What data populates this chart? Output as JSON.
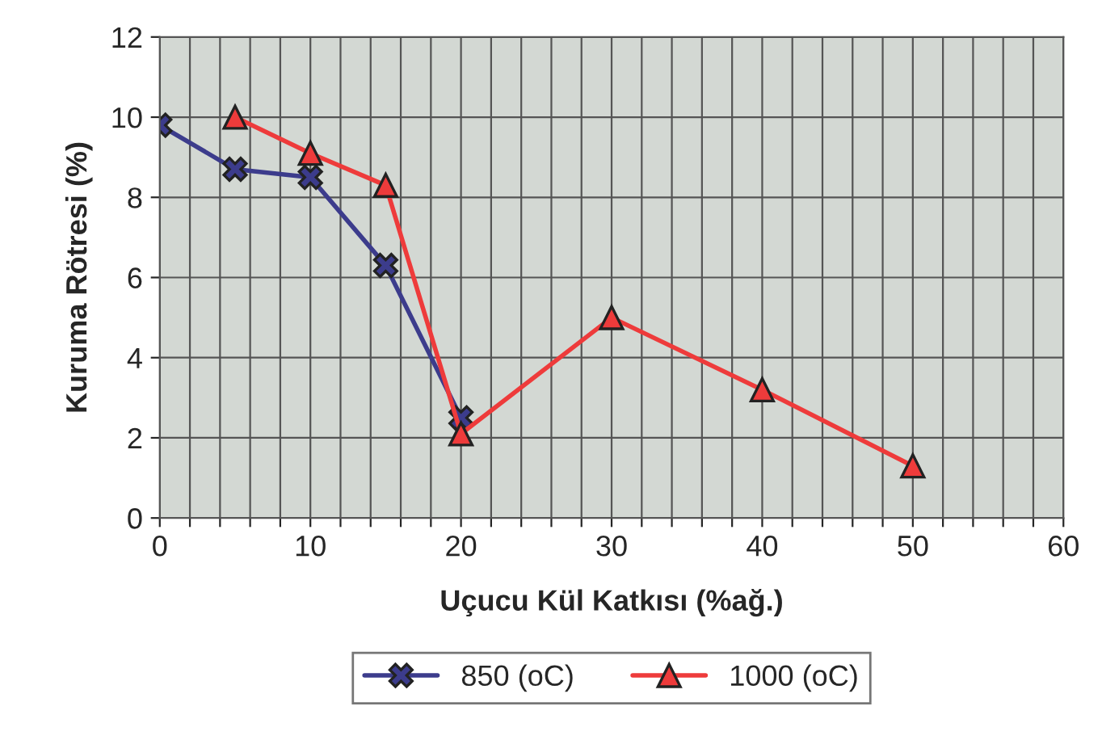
{
  "chart_data": {
    "type": "line",
    "xlabel": "Uçucu Kül Katkısı (%ağ.)",
    "ylabel": "Kuruma Rötresi (%)",
    "xlim": [
      0,
      60
    ],
    "ylim": [
      0,
      12
    ],
    "xticks": [
      0,
      {
        "value": 2,
        "label": null
      },
      {
        "value": 4,
        "label": null
      },
      {
        "value": 6,
        "label": null
      },
      {
        "value": 8,
        "label": null
      },
      10,
      {
        "value": 12,
        "label": null
      },
      {
        "value": 14,
        "label": null
      },
      {
        "value": 16,
        "label": null
      },
      {
        "value": 18,
        "label": null
      },
      20,
      {
        "value": 22,
        "label": null
      },
      {
        "value": 24,
        "label": null
      },
      {
        "value": 26,
        "label": null
      },
      {
        "value": 28,
        "label": null
      },
      30,
      {
        "value": 32,
        "label": null
      },
      {
        "value": 34,
        "label": null
      },
      {
        "value": 36,
        "label": null
      },
      {
        "value": 38,
        "label": null
      },
      40,
      {
        "value": 42,
        "label": null
      },
      {
        "value": 44,
        "label": null
      },
      {
        "value": 46,
        "label": null
      },
      {
        "value": 48,
        "label": null
      },
      50,
      {
        "value": 52,
        "label": null
      },
      {
        "value": 54,
        "label": null
      },
      {
        "value": 56,
        "label": null
      },
      {
        "value": 58,
        "label": null
      },
      60
    ],
    "yticks": [
      0,
      2,
      4,
      6,
      8,
      10,
      12
    ],
    "grid": true,
    "legend": "bottom",
    "line_style": "solid",
    "series": [
      {
        "name": "850 (oC)",
        "color": "#3c3c8c",
        "marker": "cross",
        "x": [
          0,
          5,
          10,
          15,
          20
        ],
        "values": [
          9.8,
          8.7,
          8.5,
          6.3,
          2.5
        ]
      },
      {
        "name": "1000 (oC)",
        "color": "#ee3b3b",
        "marker": "triangle",
        "x": [
          5,
          10,
          15,
          20,
          30,
          40,
          50
        ],
        "values": [
          10,
          9.1,
          8.3,
          2.1,
          5,
          3.2,
          1.3
        ]
      }
    ]
  }
}
